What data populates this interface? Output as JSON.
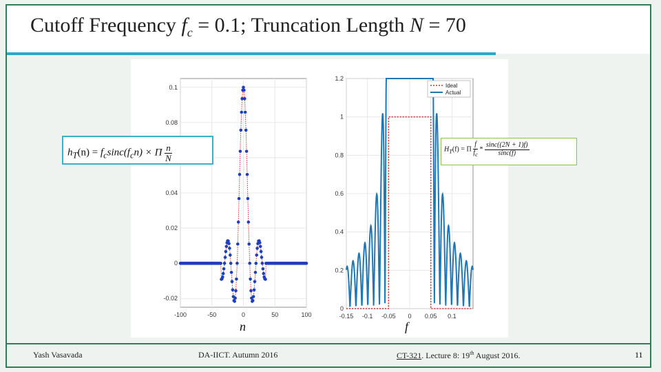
{
  "title": {
    "prefix": "Cutoff Frequency ",
    "fc_symbol": "f",
    "fc_sub": "c",
    "middle": " = 0.1; Truncation Length ",
    "n_symbol": "N",
    "suffix": " = 70"
  },
  "formula_left": {
    "lhs": "h",
    "lhs_sub": "T",
    "lhs_arg": "(n) = ",
    "rhs1": "f",
    "rhs1_sub": "c",
    "rhs2": "sinc(f",
    "rhs2_sub": "c",
    "rhs3": "n) × Π",
    "frac_num": "n",
    "frac_den": "N"
  },
  "formula_right": {
    "lhs": "H",
    "lhs_sub": "T",
    "lhs_arg": "(f) = Π",
    "frac1_num": "f",
    "frac1_den": "f",
    "frac1_den_sub": "c",
    "op": "*",
    "frac2_num": "sinc((2N + 1)f)",
    "frac2_den": "sinc(f)"
  },
  "axis_vars": {
    "left": "n",
    "right": "f"
  },
  "footer": {
    "author": "Yash Vasavada",
    "course": "DA-IICT. Autumn 2016",
    "lecture_code": "CT-321",
    "lecture_rest": ". Lecture 8: 19",
    "lecture_sup": "th",
    "lecture_end": " August 2016.",
    "slide_number": "11"
  },
  "colors": {
    "accent_green": "#2e7d5a",
    "accent_blue": "#2aa7c9",
    "stem_blue": "#1f3fbf",
    "ideal_red": "#d9302c",
    "actual_blue": "#1f77b4"
  },
  "chart_data": [
    {
      "type": "scatter",
      "title": "",
      "xlabel": "n",
      "ylabel": "",
      "xlim": [
        -100,
        100
      ],
      "ylim": [
        -0.025,
        0.105
      ],
      "xticks": [
        -100,
        -50,
        0,
        50,
        100
      ],
      "yticks": [
        -0.02,
        0,
        0.02,
        0.04,
        0.06,
        0.08,
        0.1
      ],
      "ytick_labels": [
        "-0.02",
        "0",
        "0.02",
        "0.04",
        "0.06",
        "0.08",
        "0.1"
      ],
      "grid": true,
      "series": [
        {
          "style": "dotted-red-line-with-blue-markers",
          "formula": "0.1*sinc(0.1*n) for |n|<=35, 0 elsewhere",
          "n_range": [
            -100,
            100
          ],
          "fc": 0.1,
          "N": 70
        }
      ]
    },
    {
      "type": "line",
      "title": "",
      "xlabel": "f",
      "ylabel": "",
      "xlim": [
        -0.15,
        0.15
      ],
      "ylim": [
        0,
        1.2
      ],
      "xticks": [
        -0.15,
        -0.1,
        -0.05,
        0,
        0.05,
        0.1
      ],
      "xtick_labels": [
        "-0.15",
        "-0.1",
        "-0.05",
        "0",
        "0.05",
        "0.1"
      ],
      "yticks": [
        0,
        0.2,
        0.4,
        0.6,
        0.8,
        1,
        1.2
      ],
      "ytick_labels": [
        "0",
        "0.2",
        "0.4",
        "0.6",
        "0.8",
        "1",
        "1.2"
      ],
      "grid": true,
      "legend_position": "top-right",
      "series": [
        {
          "name": "Ideal",
          "style": "dotted-red",
          "cutoff": 0.05
        },
        {
          "name": "Actual",
          "style": "solid-blue",
          "formula": "|H_T(f)| for truncated sinc, N=70"
        }
      ]
    }
  ]
}
